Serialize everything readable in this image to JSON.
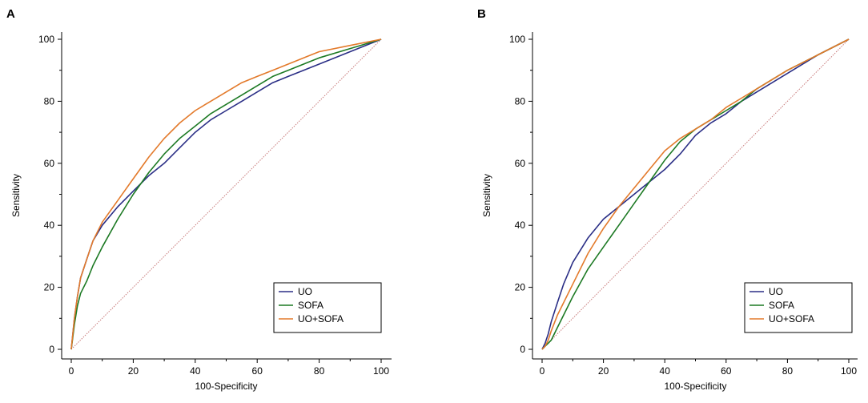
{
  "chart_data": [
    {
      "panel_label": "A",
      "type": "line",
      "title": "",
      "xlabel": "100-Specificity",
      "ylabel": "Sensitivity",
      "xlim": [
        0,
        100
      ],
      "ylim": [
        0,
        100
      ],
      "xticks": [
        "0",
        "20",
        "40",
        "60",
        "80",
        "100"
      ],
      "yticks": [
        "0",
        "20",
        "40",
        "60",
        "80",
        "100"
      ],
      "grid": false,
      "legend_position": "bottom-right",
      "reference_line": {
        "name": "chance",
        "x": [
          0,
          100
        ],
        "y": [
          0,
          100
        ],
        "color": "#c87a7a"
      },
      "series": [
        {
          "name": "UO",
          "color": "#2b2f86",
          "x": [
            0,
            1,
            2,
            3,
            5,
            7,
            10,
            15,
            20,
            25,
            30,
            35,
            40,
            45,
            50,
            55,
            60,
            65,
            70,
            80,
            90,
            100
          ],
          "y": [
            0,
            10,
            17,
            23,
            29,
            35,
            40,
            46,
            51,
            56,
            60,
            65,
            70,
            74,
            77,
            80,
            83,
            86,
            88,
            92,
            96,
            100
          ]
        },
        {
          "name": "SOFA",
          "color": "#1d7a24",
          "x": [
            0,
            1,
            2,
            3,
            5,
            7,
            10,
            15,
            20,
            25,
            30,
            35,
            40,
            45,
            50,
            55,
            60,
            65,
            70,
            80,
            90,
            100
          ],
          "y": [
            0,
            8,
            14,
            18,
            22,
            27,
            33,
            42,
            50,
            57,
            63,
            68,
            72,
            76,
            79,
            82,
            85,
            88,
            90,
            94,
            97,
            100
          ]
        },
        {
          "name": "UO+SOFA",
          "color": "#e37a2b",
          "x": [
            0,
            1,
            2,
            3,
            5,
            7,
            10,
            15,
            20,
            25,
            30,
            35,
            40,
            45,
            50,
            55,
            60,
            65,
            70,
            80,
            90,
            100
          ],
          "y": [
            0,
            10,
            17,
            23,
            29,
            35,
            41,
            48,
            55,
            62,
            68,
            73,
            77,
            80,
            83,
            86,
            88,
            90,
            92,
            96,
            98,
            100
          ]
        }
      ]
    },
    {
      "panel_label": "B",
      "type": "line",
      "title": "",
      "xlabel": "100-Specificity",
      "ylabel": "Sensitivity",
      "xlim": [
        0,
        100
      ],
      "ylim": [
        0,
        100
      ],
      "xticks": [
        "0",
        "20",
        "40",
        "60",
        "80",
        "100"
      ],
      "yticks": [
        "0",
        "20",
        "40",
        "60",
        "80",
        "100"
      ],
      "grid": false,
      "legend_position": "bottom-right",
      "reference_line": {
        "name": "chance",
        "x": [
          0,
          100
        ],
        "y": [
          0,
          100
        ],
        "color": "#c87a7a"
      },
      "series": [
        {
          "name": "UO",
          "color": "#2b2f86",
          "x": [
            0,
            1,
            2,
            3,
            5,
            7,
            10,
            15,
            20,
            25,
            30,
            35,
            40,
            45,
            50,
            55,
            60,
            65,
            70,
            80,
            90,
            100
          ],
          "y": [
            0,
            2,
            5,
            9,
            15,
            21,
            28,
            36,
            42,
            46,
            50,
            54,
            58,
            63,
            69,
            73,
            76,
            80,
            83,
            89,
            95,
            100
          ]
        },
        {
          "name": "SOFA",
          "color": "#1d7a24",
          "x": [
            0,
            1,
            2,
            3,
            5,
            7,
            10,
            15,
            20,
            25,
            30,
            35,
            40,
            45,
            50,
            55,
            60,
            65,
            70,
            80,
            90,
            100
          ],
          "y": [
            0,
            1,
            2,
            3,
            7,
            11,
            17,
            26,
            33,
            40,
            47,
            54,
            61,
            67,
            71,
            74,
            77,
            80,
            84,
            90,
            95,
            100
          ]
        },
        {
          "name": "UO+SOFA",
          "color": "#e37a2b",
          "x": [
            0,
            1,
            2,
            3,
            5,
            7,
            10,
            15,
            20,
            25,
            30,
            35,
            40,
            45,
            50,
            55,
            60,
            65,
            70,
            80,
            90,
            100
          ],
          "y": [
            0,
            1,
            3,
            6,
            11,
            15,
            21,
            31,
            39,
            46,
            52,
            58,
            64,
            68,
            71,
            74,
            78,
            81,
            84,
            90,
            95,
            100
          ]
        }
      ]
    }
  ]
}
